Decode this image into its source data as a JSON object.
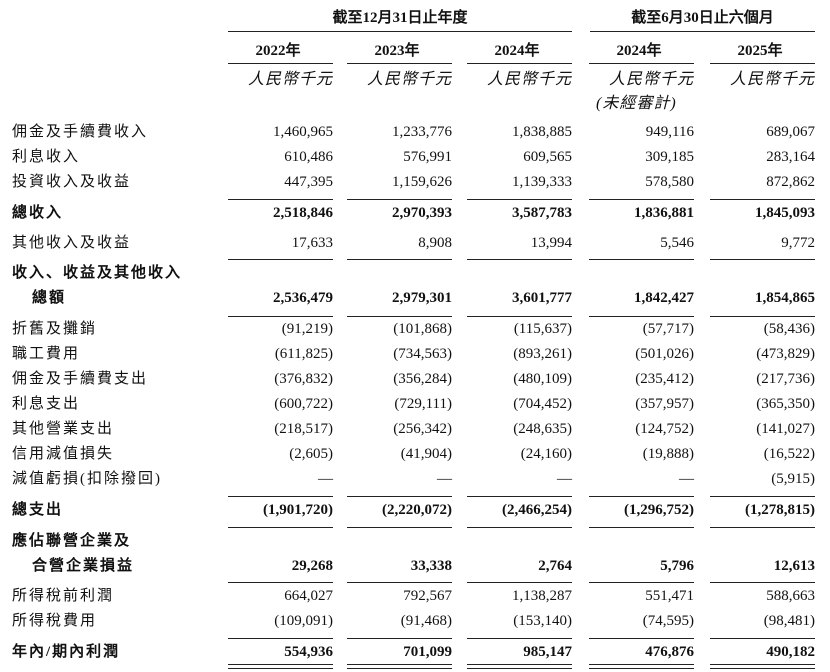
{
  "table": {
    "group_headers": [
      "截至12月31日止年度",
      "截至6月30日止六個月"
    ],
    "years": [
      "2022年",
      "2023年",
      "2024年",
      "2024年",
      "2025年"
    ],
    "unit": "人民幣千元",
    "unaudited": "(未經審計)",
    "rows": [
      {
        "label": "佣金及手續費收入",
        "values": [
          "1,460,965",
          "1,233,776",
          "1,838,885",
          "949,116",
          "689,067"
        ]
      },
      {
        "label": "利息收入",
        "values": [
          "610,486",
          "576,991",
          "609,565",
          "309,185",
          "283,164"
        ]
      },
      {
        "label": "投資收入及收益",
        "values": [
          "447,395",
          "1,159,626",
          "1,139,333",
          "578,580",
          "872,862"
        ]
      },
      {
        "label": "總收入",
        "values": [
          "2,518,846",
          "2,970,393",
          "3,587,783",
          "1,836,881",
          "1,845,093"
        ]
      },
      {
        "label": "其他收入及收益",
        "values": [
          "17,633",
          "8,908",
          "13,994",
          "5,546",
          "9,772"
        ]
      },
      {
        "label": "收入、收益及其他收入"
      },
      {
        "label": "總額",
        "values": [
          "2,536,479",
          "2,979,301",
          "3,601,777",
          "1,842,427",
          "1,854,865"
        ]
      },
      {
        "label": "折舊及攤銷",
        "values": [
          "(91,219)",
          "(101,868)",
          "(115,637)",
          "(57,717)",
          "(58,436)"
        ]
      },
      {
        "label": "職工費用",
        "values": [
          "(611,825)",
          "(734,563)",
          "(893,261)",
          "(501,026)",
          "(473,829)"
        ]
      },
      {
        "label": "佣金及手續費支出",
        "values": [
          "(376,832)",
          "(356,284)",
          "(480,109)",
          "(235,412)",
          "(217,736)"
        ]
      },
      {
        "label": "利息支出",
        "values": [
          "(600,722)",
          "(729,111)",
          "(704,452)",
          "(357,957)",
          "(365,350)"
        ]
      },
      {
        "label": "其他營業支出",
        "values": [
          "(218,517)",
          "(256,342)",
          "(248,635)",
          "(124,752)",
          "(141,027)"
        ]
      },
      {
        "label": "信用減值損失",
        "values": [
          "(2,605)",
          "(41,904)",
          "(24,160)",
          "(19,888)",
          "(16,522)"
        ]
      },
      {
        "label": "減值虧損(扣除撥回)",
        "values": [
          "—",
          "—",
          "—",
          "—",
          "(5,915)"
        ]
      },
      {
        "label": "總支出",
        "values": [
          "(1,901,720)",
          "(2,220,072)",
          "(2,466,254)",
          "(1,296,752)",
          "(1,278,815)"
        ]
      },
      {
        "label": "應佔聯營企業及"
      },
      {
        "label": "合營企業損益",
        "values": [
          "29,268",
          "33,338",
          "2,764",
          "5,796",
          "12,613"
        ]
      },
      {
        "label": "所得稅前利潤",
        "values": [
          "664,027",
          "792,567",
          "1,138,287",
          "551,471",
          "588,663"
        ]
      },
      {
        "label": "所得稅費用",
        "values": [
          "(109,091)",
          "(91,468)",
          "(153,140)",
          "(74,595)",
          "(98,481)"
        ]
      },
      {
        "label": "年內/期內利潤",
        "values": [
          "554,936",
          "701,099",
          "985,147",
          "476,876",
          "490,182"
        ]
      }
    ]
  }
}
